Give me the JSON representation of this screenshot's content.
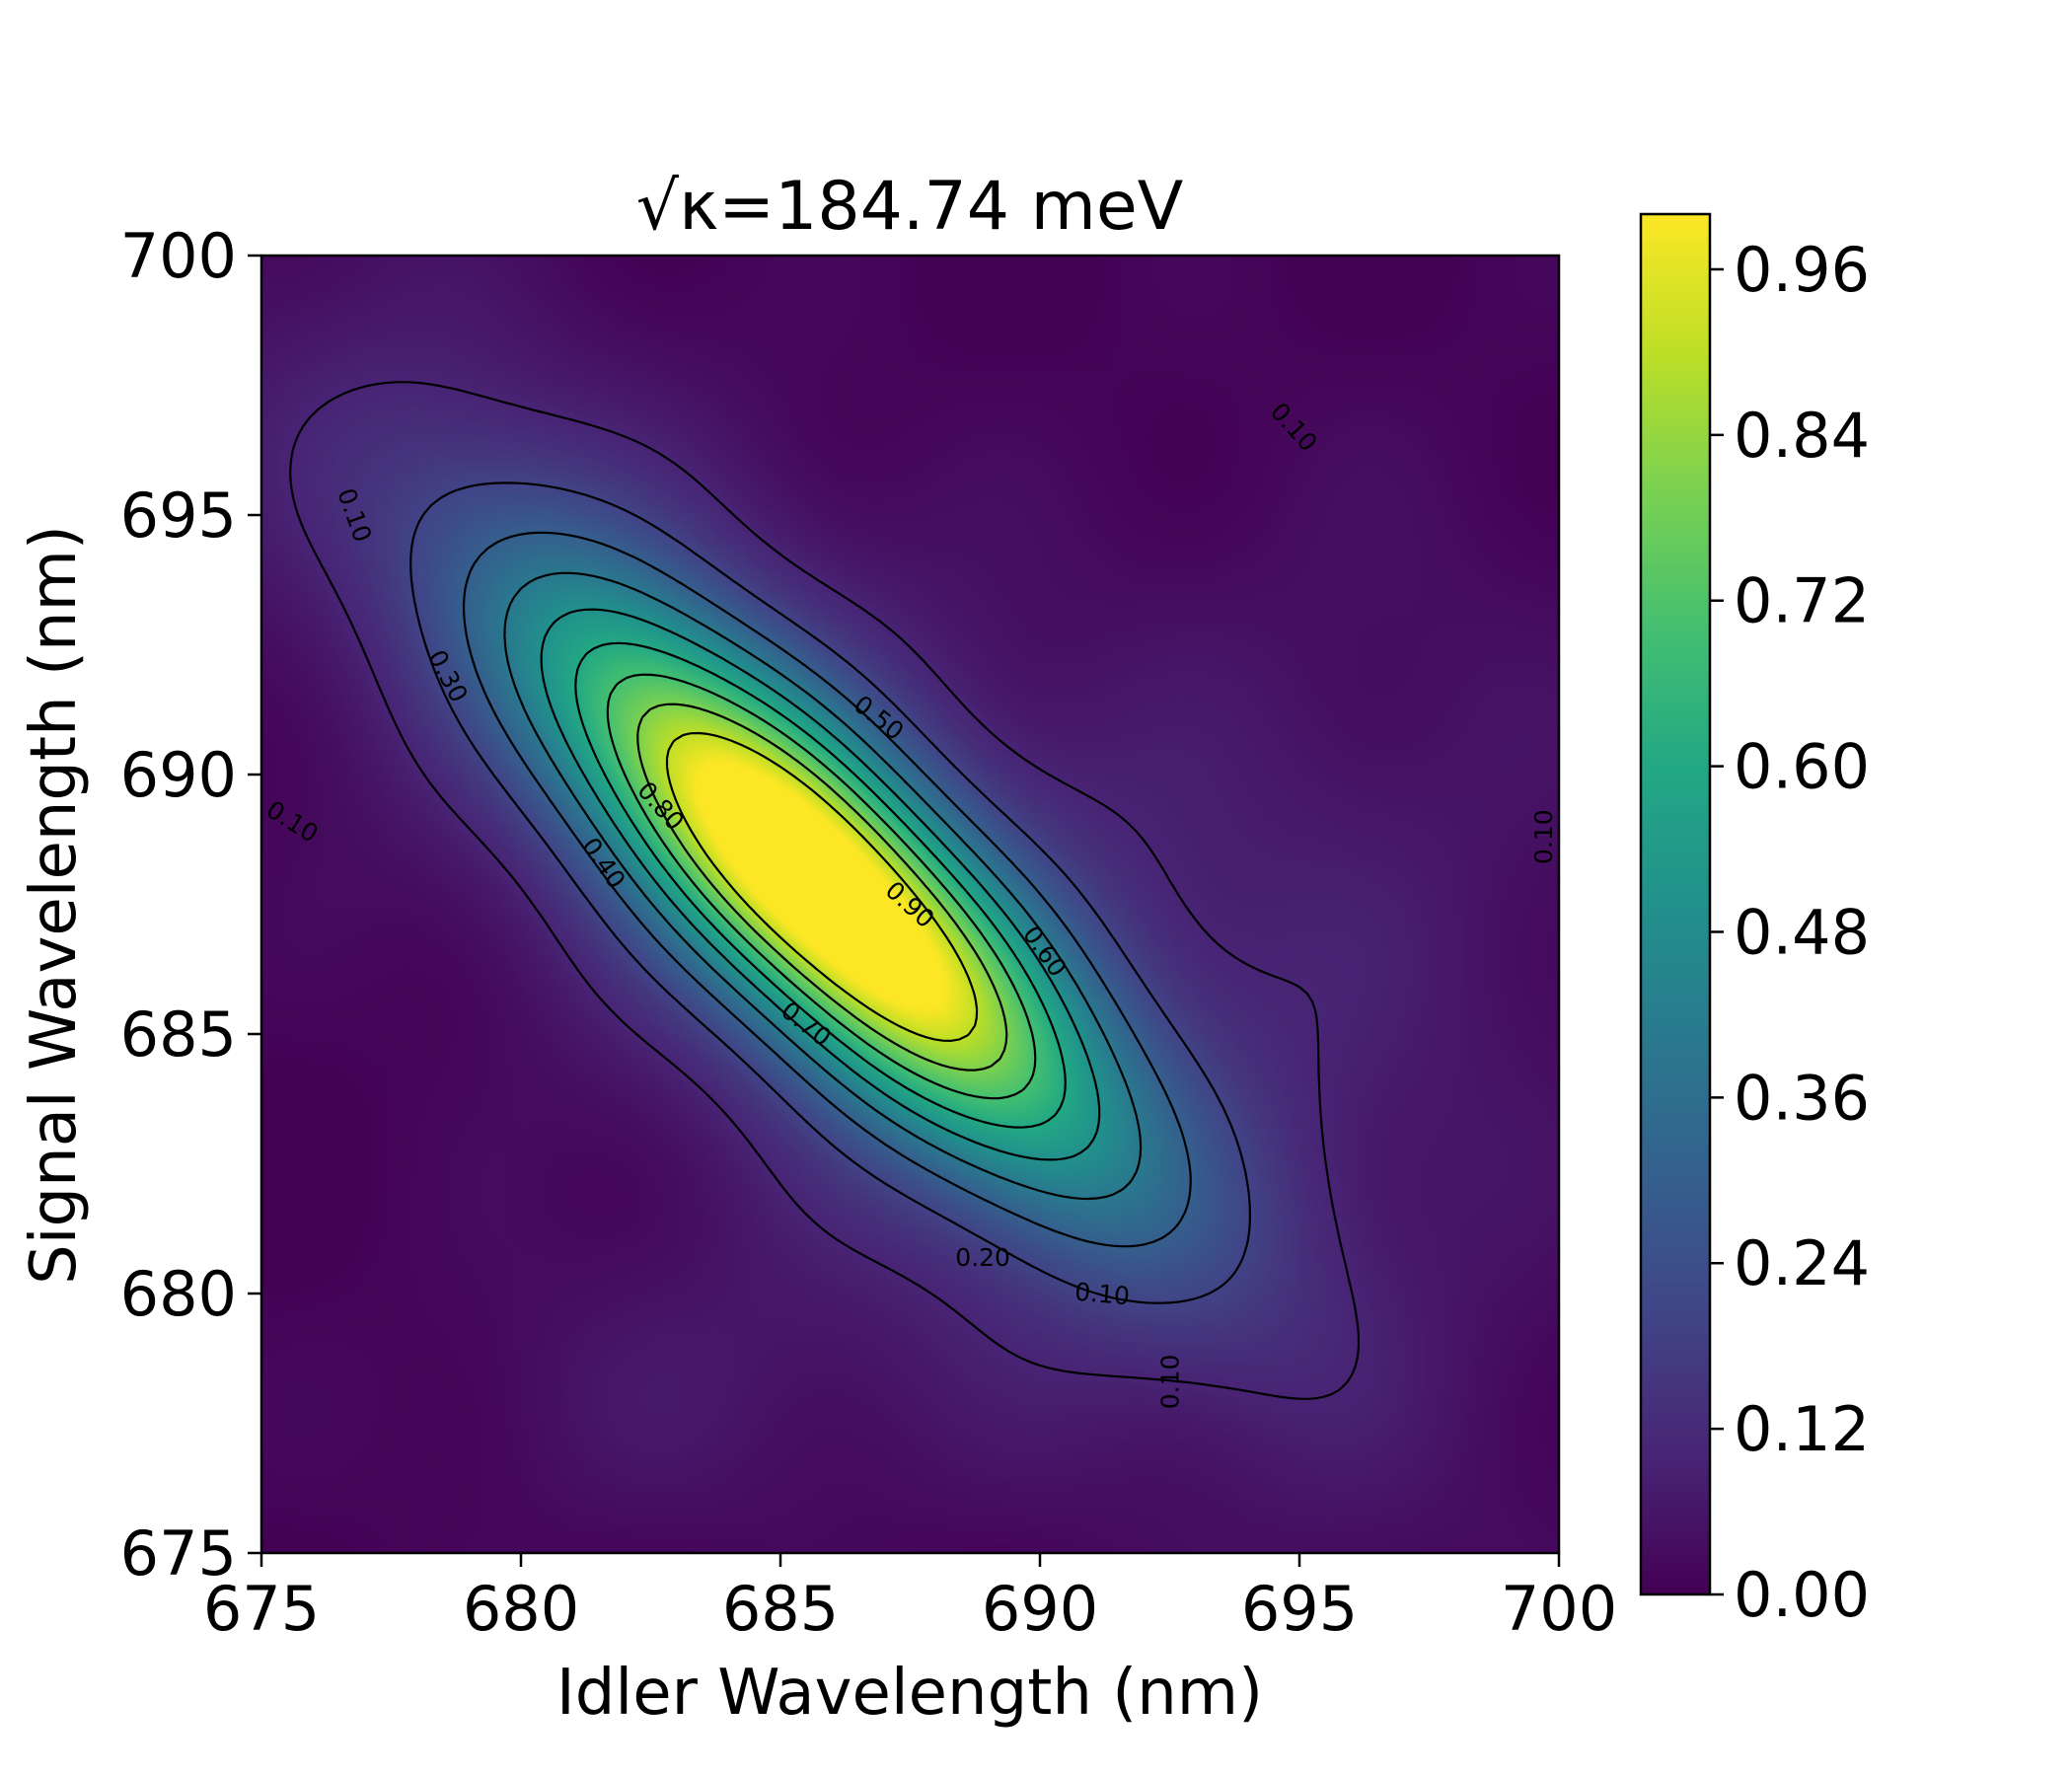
{
  "chart_data": {
    "type": "contour",
    "title": "√κ=184.74 meV",
    "xlabel": "Idler Wavelength (nm)",
    "ylabel": "Signal Wavelength (nm)",
    "xlim": [
      675,
      700
    ],
    "ylim": [
      675,
      700
    ],
    "xticks": [
      "675",
      "680",
      "685",
      "690",
      "695",
      "700"
    ],
    "yticks": [
      "675",
      "680",
      "685",
      "690",
      "695",
      "700"
    ],
    "colormap": "viridis",
    "colorbar": {
      "range": [
        0.0,
        1.0
      ],
      "ticks": [
        "0.00",
        "0.12",
        "0.24",
        "0.36",
        "0.48",
        "0.60",
        "0.72",
        "0.84",
        "0.96"
      ]
    },
    "peak": {
      "x": 685.7,
      "y": 687.9,
      "value": 1.0
    },
    "ridge_orientation": "anti-diagonal",
    "contour_levels": [
      0.1,
      0.2,
      0.3,
      0.4,
      0.5,
      0.6,
      0.7,
      0.8,
      0.9
    ],
    "contour_labels": [
      {
        "text": "0.10",
        "x": 676.8,
        "y": 695.0,
        "angle": 70
      },
      {
        "text": "0.10",
        "x": 675.6,
        "y": 689.1,
        "angle": 32
      },
      {
        "text": "0.10",
        "x": 694.9,
        "y": 696.7,
        "angle": 48
      },
      {
        "text": "0.10",
        "x": 699.7,
        "y": 688.8,
        "angle": -90
      },
      {
        "text": "0.10",
        "x": 692.5,
        "y": 678.3,
        "angle": -90
      },
      {
        "text": "0.10",
        "x": 691.2,
        "y": 680.0,
        "angle": 5
      },
      {
        "text": "0.20",
        "x": 688.9,
        "y": 680.7,
        "angle": 0
      },
      {
        "text": "0.30",
        "x": 678.6,
        "y": 691.9,
        "angle": 62
      },
      {
        "text": "0.40",
        "x": 681.6,
        "y": 688.3,
        "angle": 55
      },
      {
        "text": "0.50",
        "x": 686.9,
        "y": 691.1,
        "angle": 38
      },
      {
        "text": "0.60",
        "x": 690.1,
        "y": 686.6,
        "angle": 55
      },
      {
        "text": "0.70",
        "x": 685.5,
        "y": 685.2,
        "angle": 38
      },
      {
        "text": "0.80",
        "x": 682.7,
        "y": 689.4,
        "angle": 48
      },
      {
        "text": "0.90",
        "x": 687.5,
        "y": 687.5,
        "angle": 42
      }
    ]
  }
}
